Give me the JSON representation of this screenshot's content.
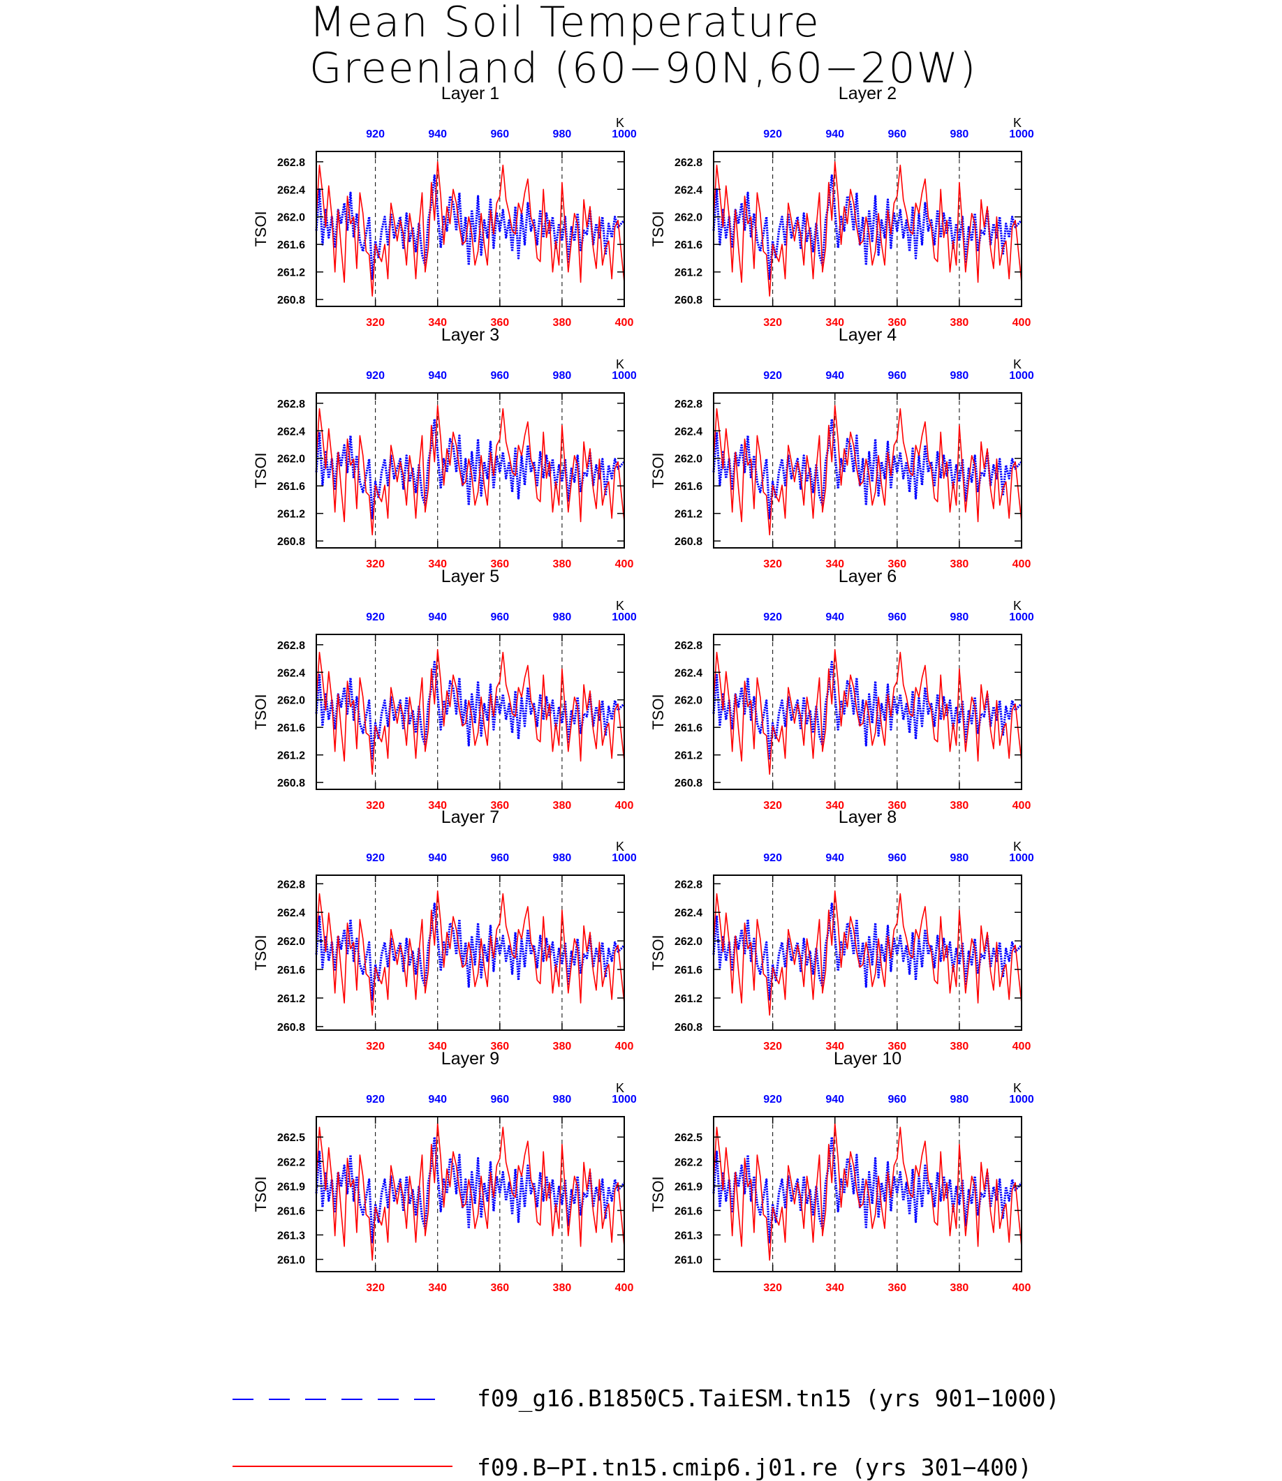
{
  "title": {
    "line1": "Mean Soil Temperature",
    "line2": "Greenland (60−90N,60−20W)"
  },
  "colors": {
    "red_series": "#ff0000",
    "blue_series": "#0000ff",
    "axis": "#000000"
  },
  "legend": {
    "blue_label": "f09_g16.B1850C5.TaiESM.tn15 (yrs 901−1000)",
    "red_label": "f09.B−PI.tn15.cmip6.j01.re (yrs 301−400)"
  },
  "chart_data": [
    {
      "type": "line",
      "title": "Layer 1",
      "ylabel": "TSOI",
      "ylim": [
        260.7,
        262.95
      ],
      "yticks": [
        260.8,
        261.2,
        261.6,
        262.0,
        262.4,
        262.8
      ],
      "ytick_labels": [
        "260.8",
        "261.2",
        "261.6",
        "262.0",
        "262.4",
        "262.8"
      ],
      "x_bottom_ticks": [
        "320",
        "340",
        "360",
        "380",
        "400"
      ],
      "x_top_ticks": [
        "920",
        "940",
        "960",
        "980",
        "1000"
      ],
      "top_unit": "K",
      "xlim_bottom": [
        301,
        400
      ],
      "xlim_top": [
        901,
        1000
      ],
      "series": []
    },
    {
      "type": "line",
      "title": "Layer 2",
      "ylabel": "TSOI",
      "ylim": [
        260.7,
        262.95
      ],
      "yticks": [
        260.8,
        261.2,
        261.6,
        262.0,
        262.4,
        262.8
      ],
      "ytick_labels": [
        "260.8",
        "261.2",
        "261.6",
        "262.0",
        "262.4",
        "262.8"
      ],
      "x_bottom_ticks": [
        "320",
        "340",
        "360",
        "380",
        "400"
      ],
      "x_top_ticks": [
        "920",
        "940",
        "960",
        "980",
        "1000"
      ],
      "top_unit": "K",
      "xlim_bottom": [
        301,
        400
      ],
      "xlim_top": [
        901,
        1000
      ],
      "series": []
    },
    {
      "type": "line",
      "title": "Layer 3",
      "ylabel": "TSOI",
      "ylim": [
        260.7,
        262.95
      ],
      "yticks": [
        260.8,
        261.2,
        261.6,
        262.0,
        262.4,
        262.8
      ],
      "ytick_labels": [
        "260.8",
        "261.2",
        "261.6",
        "262.0",
        "262.4",
        "262.8"
      ],
      "x_bottom_ticks": [
        "320",
        "340",
        "360",
        "380",
        "400"
      ],
      "x_top_ticks": [
        "920",
        "940",
        "960",
        "980",
        "1000"
      ],
      "top_unit": "K",
      "xlim_bottom": [
        301,
        400
      ],
      "xlim_top": [
        901,
        1000
      ],
      "series": []
    },
    {
      "type": "line",
      "title": "Layer 4",
      "ylabel": "TSOI",
      "ylim": [
        260.7,
        262.95
      ],
      "yticks": [
        260.8,
        261.2,
        261.6,
        262.0,
        262.4,
        262.8
      ],
      "ytick_labels": [
        "260.8",
        "261.2",
        "261.6",
        "262.0",
        "262.4",
        "262.8"
      ],
      "x_bottom_ticks": [
        "320",
        "340",
        "360",
        "380",
        "400"
      ],
      "x_top_ticks": [
        "920",
        "940",
        "960",
        "980",
        "1000"
      ],
      "top_unit": "K",
      "xlim_bottom": [
        301,
        400
      ],
      "xlim_top": [
        901,
        1000
      ],
      "series": []
    },
    {
      "type": "line",
      "title": "Layer 5",
      "ylabel": "TSOI",
      "ylim": [
        260.7,
        262.95
      ],
      "yticks": [
        260.8,
        261.2,
        261.6,
        262.0,
        262.4,
        262.8
      ],
      "ytick_labels": [
        "260.8",
        "261.2",
        "261.6",
        "262.0",
        "262.4",
        "262.8"
      ],
      "x_bottom_ticks": [
        "320",
        "340",
        "360",
        "380",
        "400"
      ],
      "x_top_ticks": [
        "920",
        "940",
        "960",
        "980",
        "1000"
      ],
      "top_unit": "K",
      "xlim_bottom": [
        301,
        400
      ],
      "xlim_top": [
        901,
        1000
      ],
      "series": []
    },
    {
      "type": "line",
      "title": "Layer 6",
      "ylabel": "TSOI",
      "ylim": [
        260.7,
        262.95
      ],
      "yticks": [
        260.8,
        261.2,
        261.6,
        262.0,
        262.4,
        262.8
      ],
      "ytick_labels": [
        "260.8",
        "261.2",
        "261.6",
        "262.0",
        "262.4",
        "262.8"
      ],
      "x_bottom_ticks": [
        "320",
        "340",
        "360",
        "380",
        "400"
      ],
      "x_top_ticks": [
        "920",
        "940",
        "960",
        "980",
        "1000"
      ],
      "top_unit": "K",
      "xlim_bottom": [
        301,
        400
      ],
      "xlim_top": [
        901,
        1000
      ],
      "series": []
    },
    {
      "type": "line",
      "title": "Layer 7",
      "ylabel": "TSOI",
      "ylim": [
        260.75,
        262.92
      ],
      "yticks": [
        260.8,
        261.2,
        261.6,
        262.0,
        262.4,
        262.8
      ],
      "ytick_labels": [
        "260.8",
        "261.2",
        "261.6",
        "262.0",
        "262.4",
        "262.8"
      ],
      "x_bottom_ticks": [
        "320",
        "340",
        "360",
        "380",
        "400"
      ],
      "x_top_ticks": [
        "920",
        "940",
        "960",
        "980",
        "1000"
      ],
      "top_unit": "K",
      "xlim_bottom": [
        301,
        400
      ],
      "xlim_top": [
        901,
        1000
      ],
      "series": []
    },
    {
      "type": "line",
      "title": "Layer 8",
      "ylabel": "TSOI",
      "ylim": [
        260.75,
        262.92
      ],
      "yticks": [
        260.8,
        261.2,
        261.6,
        262.0,
        262.4,
        262.8
      ],
      "ytick_labels": [
        "260.8",
        "261.2",
        "261.6",
        "262.0",
        "262.4",
        "262.8"
      ],
      "x_bottom_ticks": [
        "320",
        "340",
        "360",
        "380",
        "400"
      ],
      "x_top_ticks": [
        "920",
        "940",
        "960",
        "980",
        "1000"
      ],
      "top_unit": "K",
      "xlim_bottom": [
        301,
        400
      ],
      "xlim_top": [
        901,
        1000
      ],
      "series": []
    },
    {
      "type": "line",
      "title": "Layer 9",
      "ylabel": "TSOI",
      "ylim": [
        260.85,
        262.75
      ],
      "yticks": [
        261.0,
        261.3,
        261.6,
        261.9,
        262.2,
        262.5
      ],
      "ytick_labels": [
        "261.0",
        "261.3",
        "261.6",
        "261.9",
        "262.2",
        "262.5"
      ],
      "x_bottom_ticks": [
        "320",
        "340",
        "360",
        "380",
        "400"
      ],
      "x_top_ticks": [
        "920",
        "940",
        "960",
        "980",
        "1000"
      ],
      "top_unit": "K",
      "xlim_bottom": [
        301,
        400
      ],
      "xlim_top": [
        901,
        1000
      ],
      "series": []
    },
    {
      "type": "line",
      "title": "Layer 10",
      "ylabel": "TSOI",
      "ylim": [
        260.85,
        262.75
      ],
      "yticks": [
        261.0,
        261.3,
        261.6,
        261.9,
        262.2,
        262.5
      ],
      "ytick_labels": [
        "261.0",
        "261.3",
        "261.6",
        "261.9",
        "262.2",
        "262.5"
      ],
      "x_bottom_ticks": [
        "320",
        "340",
        "360",
        "380",
        "400"
      ],
      "x_top_ticks": [
        "920",
        "940",
        "960",
        "980",
        "1000"
      ],
      "top_unit": "K",
      "xlim_bottom": [
        301,
        400
      ],
      "xlim_top": [
        901,
        1000
      ],
      "series": []
    }
  ],
  "series_values": {
    "red": [
      262.0,
      262.75,
      262.35,
      261.85,
      262.45,
      262.0,
      261.2,
      262.1,
      261.55,
      261.05,
      262.3,
      261.9,
      262.0,
      261.25,
      262.35,
      262.05,
      261.5,
      261.45,
      260.85,
      261.6,
      261.45,
      261.35,
      261.6,
      261.1,
      262.2,
      261.95,
      261.65,
      261.95,
      261.75,
      261.3,
      262.05,
      261.75,
      261.1,
      261.85,
      262.35,
      261.2,
      261.55,
      262.5,
      261.95,
      262.8,
      262.3,
      261.6,
      262.15,
      261.9,
      262.4,
      262.2,
      261.85,
      261.6,
      261.65,
      262.0,
      261.75,
      261.3,
      261.5,
      262.05,
      261.6,
      261.3,
      262.1,
      261.75,
      262.2,
      262.3,
      262.75,
      262.25,
      262.05,
      261.8,
      261.75,
      262.2,
      262.05,
      262.35,
      262.55,
      262.0,
      261.85,
      261.4,
      261.35,
      262.4,
      261.7,
      261.95,
      261.2,
      261.65,
      261.3,
      262.5,
      261.85,
      261.2,
      261.65,
      262.05,
      261.9,
      261.05,
      262.25,
      261.85,
      262.15,
      261.55,
      261.25,
      262.0,
      261.3,
      261.55,
      261.65,
      261.1,
      261.85,
      261.95,
      261.5,
      261.05
    ],
    "blue": [
      261.8,
      262.4,
      261.6,
      262.1,
      261.7,
      262.0,
      261.55,
      262.1,
      261.9,
      262.2,
      261.8,
      262.35,
      261.7,
      262.05,
      261.65,
      261.5,
      261.75,
      262.0,
      261.1,
      261.65,
      261.4,
      261.8,
      262.0,
      261.6,
      262.05,
      261.7,
      261.85,
      262.0,
      261.55,
      262.05,
      261.65,
      261.85,
      261.5,
      261.9,
      261.45,
      261.3,
      261.95,
      262.2,
      262.6,
      262.1,
      261.55,
      262.0,
      261.8,
      262.3,
      262.2,
      261.8,
      262.35,
      261.6,
      262.0,
      261.3,
      262.1,
      261.65,
      262.3,
      261.45,
      261.95,
      261.7,
      262.25,
      261.55,
      262.05,
      261.8,
      262.1,
      261.7,
      261.95,
      261.5,
      262.15,
      261.4,
      262.05,
      261.6,
      262.2,
      261.8,
      261.95,
      261.6,
      262.1,
      261.7,
      262.05,
      261.75,
      262.0,
      261.55,
      261.9,
      261.65,
      262.0,
      261.35,
      261.85,
      261.65,
      262.05,
      261.5,
      261.8,
      261.75,
      262.1,
      261.6,
      261.9,
      261.7,
      262.0,
      261.45,
      261.9,
      261.7,
      262.0,
      261.85,
      261.9,
      261.95
    ]
  }
}
